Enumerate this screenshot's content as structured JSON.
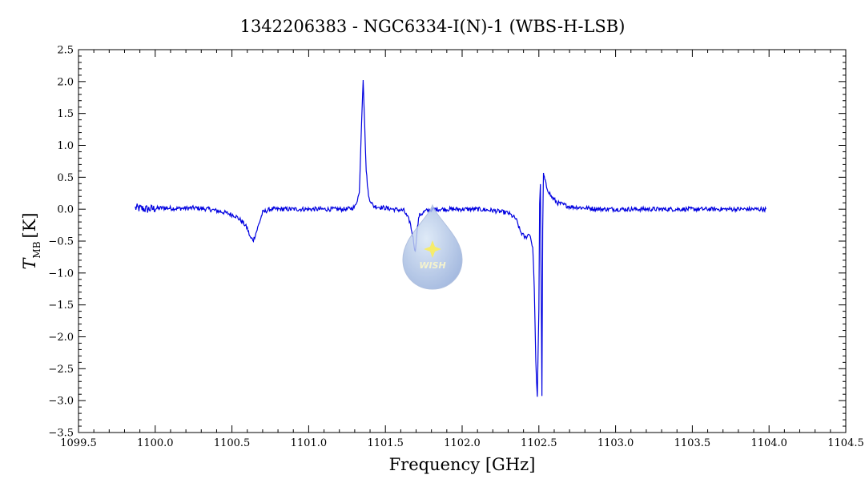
{
  "chart_data": {
    "type": "line",
    "title": "1342206383 - NGC6334-I(N)-1 (WBS-H-LSB)",
    "xlabel": "Frequency [GHz]",
    "ylabel": {
      "main": "T",
      "sub": "MB",
      "unit": "[K]"
    },
    "xlim": [
      1099.5,
      1104.5
    ],
    "ylim": [
      -3.5,
      2.5
    ],
    "x_ticks": [
      "1099.5",
      "1100.0",
      "1100.5",
      "1101.0",
      "1101.5",
      "1102.0",
      "1102.5",
      "1103.0",
      "1103.5",
      "1104.0",
      "1104.5"
    ],
    "y_ticks": [
      "2.5",
      "2.0",
      "1.5",
      "1.0",
      "0.5",
      "0.0",
      "-0.5",
      "-1.0",
      "-1.5",
      "-2.0",
      "-2.5",
      "-3.0",
      "-3.5"
    ],
    "grid": false,
    "line_color": "#0000e0",
    "series": [
      {
        "x": [
          1099.87,
          1099.95,
          1100.05,
          1100.15,
          1100.25,
          1100.35,
          1100.45,
          1100.52,
          1100.57,
          1100.6,
          1100.62,
          1100.64,
          1100.66,
          1100.7,
          1100.75,
          1100.85,
          1100.95,
          1101.05,
          1101.15,
          1101.25,
          1101.3,
          1101.33,
          1101.345,
          1101.355,
          1101.365,
          1101.375,
          1101.39,
          1101.42,
          1101.47,
          1101.55,
          1101.62,
          1101.66,
          1101.68,
          1101.695,
          1101.705,
          1101.72,
          1101.76,
          1101.82,
          1101.9,
          1102.0,
          1102.1,
          1102.2,
          1102.3,
          1102.35,
          1102.38,
          1102.41,
          1102.44,
          1102.46,
          1102.47,
          1102.48,
          1102.49,
          1102.5,
          1102.505,
          1102.51,
          1102.515,
          1102.52,
          1102.525,
          1102.53,
          1102.535,
          1102.55,
          1102.58,
          1102.62,
          1102.7,
          1102.8,
          1102.9,
          1103.0,
          1103.1,
          1103.3,
          1103.5,
          1103.7,
          1103.9,
          1103.98
        ],
        "y": [
          0.02,
          0.0,
          0.02,
          0.01,
          0.02,
          0.0,
          -0.05,
          -0.1,
          -0.2,
          -0.3,
          -0.45,
          -0.48,
          -0.35,
          -0.05,
          0.0,
          0.0,
          0.0,
          0.0,
          0.0,
          0.0,
          0.03,
          0.25,
          1.4,
          2.05,
          1.3,
          0.6,
          0.2,
          0.05,
          0.03,
          0.0,
          -0.02,
          -0.2,
          -0.45,
          -0.68,
          -0.35,
          -0.1,
          -0.03,
          0.0,
          0.0,
          0.0,
          0.0,
          -0.02,
          -0.06,
          -0.15,
          -0.35,
          -0.45,
          -0.38,
          -0.6,
          -1.2,
          -2.4,
          -2.95,
          -1.6,
          0.1,
          0.4,
          -1.2,
          -2.9,
          -0.3,
          0.55,
          0.5,
          0.35,
          0.2,
          0.1,
          0.04,
          0.02,
          0.0,
          0.0,
          0.0,
          0.0,
          0.0,
          0.0,
          0.0,
          0.0
        ]
      }
    ]
  },
  "watermark": {
    "text": "WISH",
    "colors": {
      "drop_top": "#d8e6f6",
      "drop_bottom": "#8fa9d8",
      "star": "#f5e94a"
    }
  }
}
